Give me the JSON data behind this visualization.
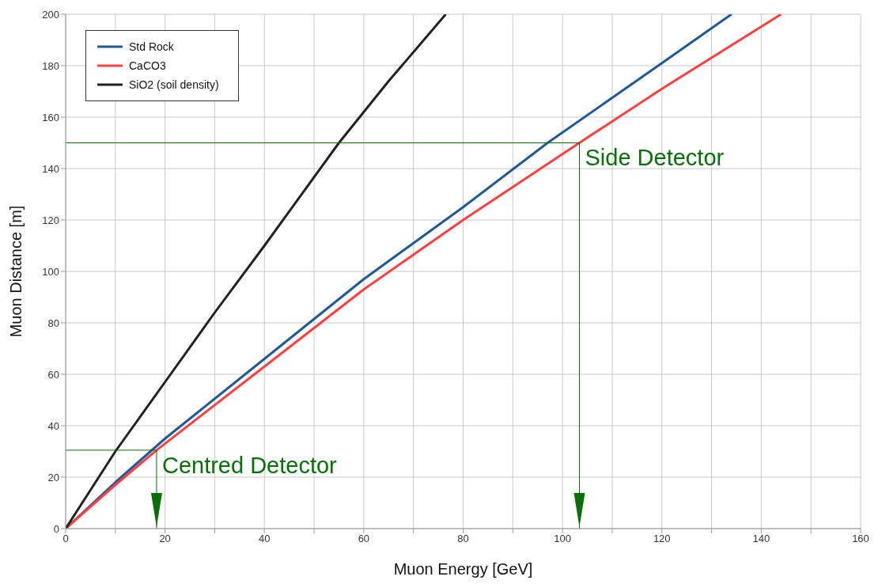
{
  "chart_data": {
    "type": "line",
    "xlabel": "Muon Energy [GeV]",
    "ylabel": "Muon Distance [m]",
    "xlim": [
      0,
      160
    ],
    "ylim": [
      0,
      200
    ],
    "xticks": [
      0,
      {
        "value": 10,
        "label": null
      },
      20,
      {
        "value": 30,
        "label": null
      },
      40,
      {
        "value": 50,
        "label": null
      },
      60,
      {
        "value": 70,
        "label": null
      },
      80,
      {
        "value": 90,
        "label": null
      },
      100,
      {
        "value": 110,
        "label": null
      },
      120,
      {
        "value": 130,
        "label": null
      },
      140,
      {
        "value": 150,
        "label": null
      },
      160
    ],
    "yticks": [
      0,
      20,
      40,
      60,
      80,
      100,
      120,
      140,
      160,
      180,
      200
    ],
    "grid": true,
    "legend": "top left",
    "marker": "none",
    "line_style": "solid",
    "series": [
      {
        "name": "Std Rock",
        "color": "#1f5a96",
        "x": [
          0,
          10,
          20,
          40,
          60,
          80,
          97,
          120,
          134
        ],
        "values": [
          0,
          18,
          35,
          66,
          97,
          125,
          150,
          181,
          200
        ]
      },
      {
        "name": "CaCO3",
        "color": "#ff4040",
        "x": [
          0,
          10,
          18.3,
          40,
          60,
          80,
          103.4,
          120,
          144
        ],
        "values": [
          0,
          17,
          30.5,
          63,
          93,
          120,
          150,
          171,
          200
        ]
      },
      {
        "name": "SiO2 (soil density)",
        "color": "#222222",
        "x": [
          0,
          10,
          20,
          30,
          40,
          55,
          65,
          76.5
        ],
        "values": [
          0,
          30,
          57,
          84,
          110,
          150,
          174,
          200
        ]
      },
      {
        "color": "#0a6e0a",
        "x": [
          0,
          103.4,
          103.4
        ],
        "values": [
          150,
          150,
          0
        ]
      },
      {
        "color": "#0a6e0a",
        "x": [
          0,
          18.3,
          18.3
        ],
        "values": [
          30.5,
          30.5,
          0
        ]
      }
    ],
    "annotations": [
      {
        "text": "Side Detector",
        "x": 103.4,
        "y": 150
      },
      {
        "text": "Centred Detector",
        "x": 18.3,
        "y": 30.5
      }
    ]
  }
}
